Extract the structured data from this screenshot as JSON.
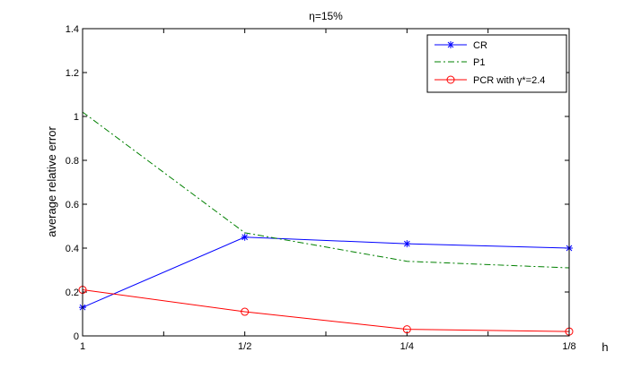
{
  "chart_data": {
    "type": "line",
    "title": "η=15%",
    "xlabel": "h",
    "ylabel": "average relative error",
    "categories": [
      "1",
      "1/2",
      "1/4",
      "1/8"
    ],
    "ylim": [
      0,
      1.4
    ],
    "yticks": [
      "0",
      "0.2",
      "0.4",
      "0.6",
      "0.8",
      "1",
      "1.2",
      "1.4"
    ],
    "legend_position": "top-right",
    "grid": false,
    "series": [
      {
        "name": "CR",
        "values": [
          0.13,
          0.45,
          0.42,
          0.4
        ],
        "color": "#0000ff",
        "style": "solid",
        "marker": "star"
      },
      {
        "name": "P1",
        "values": [
          1.02,
          0.47,
          0.34,
          0.31
        ],
        "color": "#008000",
        "style": "dashdot",
        "marker": "none"
      },
      {
        "name": "PCR with γ*=2.4",
        "values": [
          0.21,
          0.11,
          0.03,
          0.02
        ],
        "color": "#ff0000",
        "style": "solid",
        "marker": "circle"
      }
    ]
  }
}
